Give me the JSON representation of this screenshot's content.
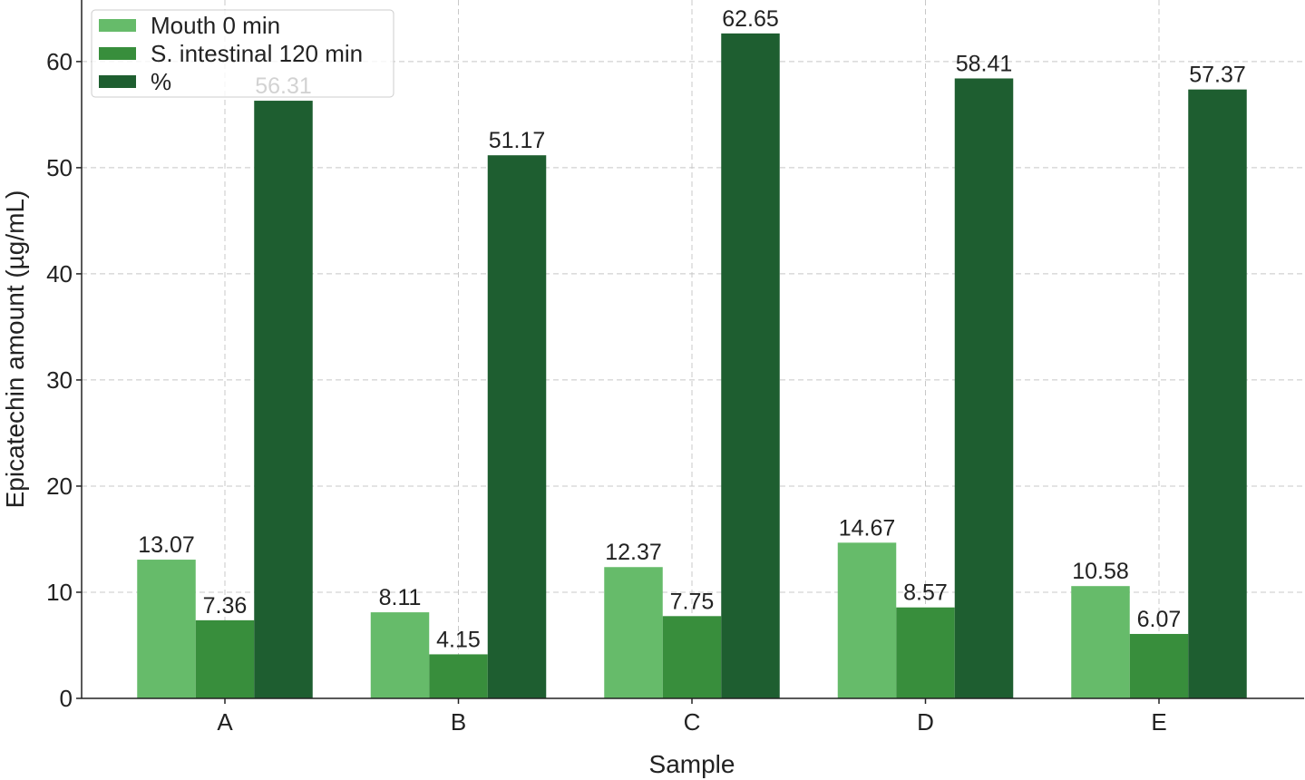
{
  "chart_data": {
    "type": "bar",
    "title": "",
    "xlabel": "Sample",
    "ylabel": "Epicatechin amount (µg/mL)",
    "categories": [
      "A",
      "B",
      "C",
      "D",
      "E"
    ],
    "ylim": [
      0,
      65.8
    ],
    "yticks": [
      0,
      10,
      20,
      30,
      40,
      50,
      60
    ],
    "grid": true,
    "legend_position": "top-left",
    "series": [
      {
        "name": "Mouth 0 min",
        "color": "#66bb6a",
        "values": [
          13.07,
          8.11,
          12.37,
          14.67,
          10.58
        ]
      },
      {
        "name": "S. intestinal 120 min",
        "color": "#388e3c",
        "values": [
          7.36,
          4.15,
          7.75,
          8.57,
          6.07
        ]
      },
      {
        "name": "%",
        "color": "#1e5e30",
        "values": [
          56.31,
          51.17,
          62.65,
          58.41,
          57.37
        ]
      }
    ]
  }
}
